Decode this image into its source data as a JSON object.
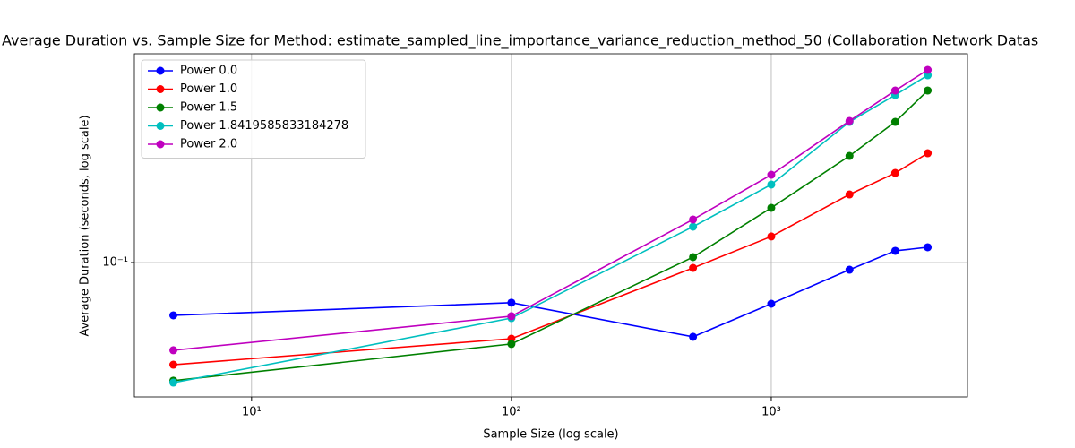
{
  "chart_data": {
    "type": "line",
    "title": "Average Duration vs. Sample Size for Method: estimate_sampled_line_importance_variance_reduction_method_50 (Collaboration Network Datas",
    "x_label": "Sample Size (log scale)",
    "y_label": "Average Duration (seconds, log scale)",
    "x": [
      5,
      100,
      500,
      1000,
      2000,
      3000,
      4000
    ],
    "series": [
      {
        "name": "Power 0.0",
        "color": "#0000ff",
        "values": [
          0.0587,
          0.0667,
          0.0473,
          0.066,
          0.093,
          0.1125,
          0.1166
        ]
      },
      {
        "name": "Power 1.0",
        "color": "#ff0000",
        "values": [
          0.0357,
          0.0464,
          0.0947,
          0.13,
          0.1986,
          0.2466,
          0.3008
        ]
      },
      {
        "name": "Power 1.5",
        "color": "#008000",
        "values": [
          0.0304,
          0.044,
          0.1056,
          0.1735,
          0.2928,
          0.4127,
          0.566
        ]
      },
      {
        "name": "Power 1.8419585833184278",
        "color": "#00bfbf",
        "values": [
          0.0298,
          0.0571,
          0.1435,
          0.2194,
          0.4127,
          0.541,
          0.66
        ]
      },
      {
        "name": "Power 2.0",
        "color": "#bf00bf",
        "values": [
          0.0413,
          0.0582,
          0.1543,
          0.2422,
          0.4167,
          0.566,
          0.697
        ]
      }
    ],
    "xscale": "log",
    "yscale": "log",
    "xlim": [
      3.54,
      5690
    ],
    "ylim": [
      0.0258,
      0.82
    ],
    "xticks": [
      {
        "value": 10,
        "label": "10¹"
      },
      {
        "value": 100,
        "label": "10²"
      },
      {
        "value": 1000,
        "label": "10³"
      }
    ],
    "yticks": [
      {
        "value": 0.1,
        "label": "10⁻¹"
      }
    ],
    "grid": true,
    "legend": "upper left"
  }
}
